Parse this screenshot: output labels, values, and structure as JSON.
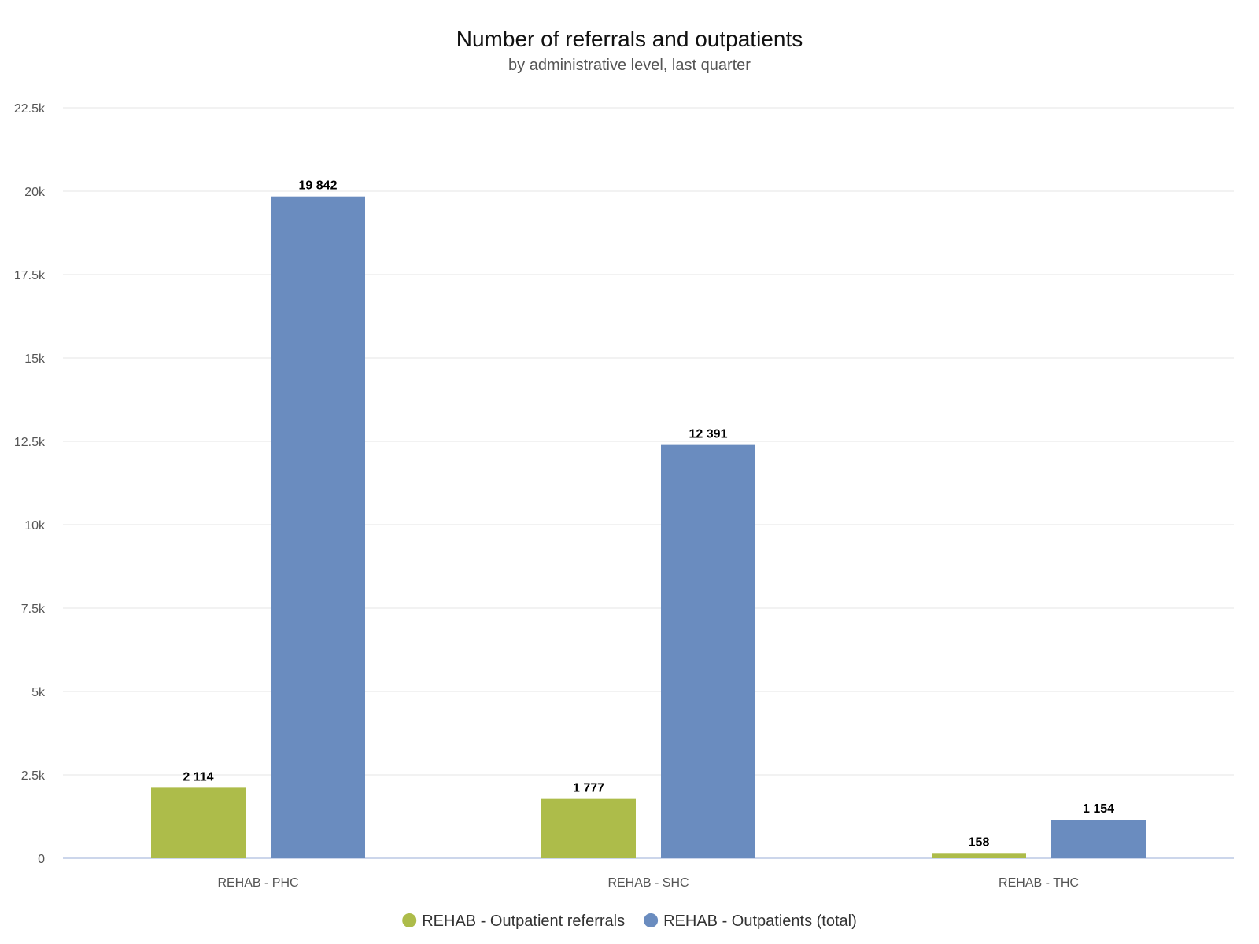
{
  "chart_data": {
    "type": "bar",
    "title": "Number of referrals and outpatients",
    "subtitle": "by administrative level, last quarter",
    "categories": [
      "REHAB - PHC",
      "REHAB - SHC",
      "REHAB - THC"
    ],
    "series": [
      {
        "name": "REHAB - Outpatient referrals",
        "color": "#adbc4a",
        "values": [
          2114,
          1777,
          158
        ],
        "labels": [
          "2 114",
          "1 777",
          "158"
        ]
      },
      {
        "name": "REHAB - Outpatients (total)",
        "color": "#6a8cbf",
        "values": [
          19842,
          12391,
          1154
        ],
        "labels": [
          "19 842",
          "12 391",
          "1 154"
        ]
      }
    ],
    "ylim": [
      0,
      22500
    ],
    "yticks": [
      0,
      2500,
      5000,
      7500,
      10000,
      12500,
      15000,
      17500,
      20000,
      22500
    ],
    "ytick_labels": [
      "0",
      "2.5k",
      "5k",
      "7.5k",
      "10k",
      "12.5k",
      "15k",
      "17.5k",
      "20k",
      "22.5k"
    ],
    "xlabel": "",
    "ylabel": "",
    "grid": true,
    "legend_position": "bottom-center",
    "colors": {
      "grid": "#e6e6e6",
      "axis": "#ccd6eb"
    }
  }
}
